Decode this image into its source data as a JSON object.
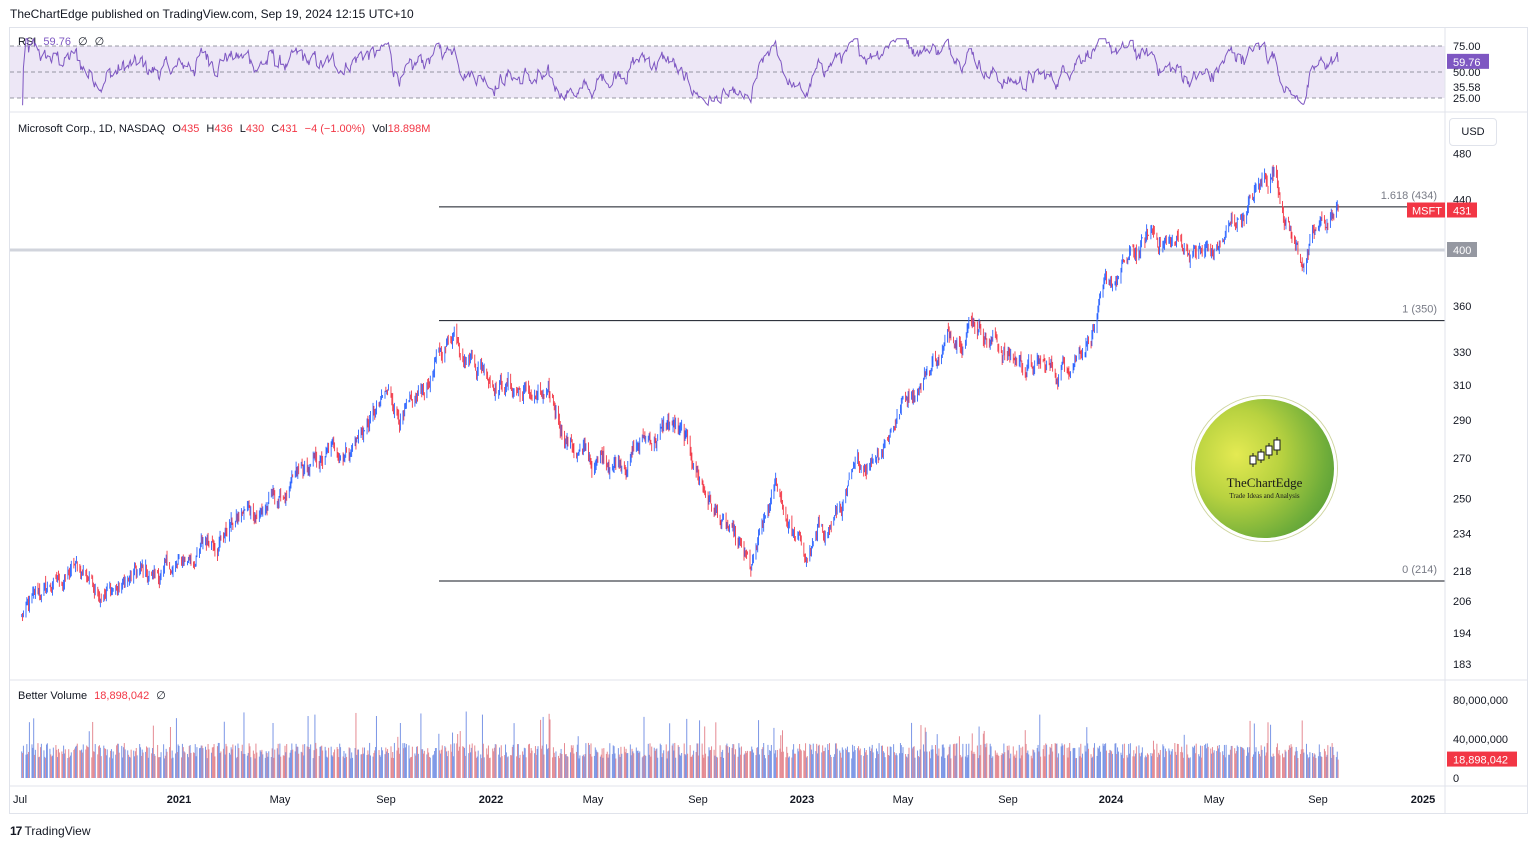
{
  "header": {
    "publisher": "TheChartEdge published on TradingView.com, Sep 19, 2024 12:15 UTC+10"
  },
  "colors": {
    "up": "#2962ff",
    "down": "#f23645",
    "rsi": "#7e57c2",
    "grid_line": "#131722",
    "band": "#ede7f6"
  },
  "rsi_panel": {
    "legend": {
      "name": "RSI",
      "value": "59.76",
      "p1": "∅",
      "p2": "∅"
    },
    "scale_labels": [
      "75.00",
      "50.00",
      "35.58",
      "25.00"
    ],
    "current_label": "59.76",
    "levels": {
      "upper": 75,
      "middle": 50,
      "lower": 25
    }
  },
  "main_panel": {
    "legend": {
      "symbol": "Microsoft Corp., 1D, NASDAQ",
      "o_key": "O",
      "o_val": "435",
      "h_key": "H",
      "h_val": "436",
      "l_key": "L",
      "l_val": "430",
      "c_key": "C",
      "c_val": "431",
      "change": "−4 (−1.00%)",
      "vol_key": "Vol",
      "vol_val": "18.898M"
    },
    "currency_button": "USD",
    "price_scale_labels": [
      "480",
      "440",
      "400",
      "360",
      "330",
      "310",
      "290",
      "270",
      "250",
      "234",
      "218",
      "206",
      "194",
      "183"
    ],
    "symbol_tag": "MSFT",
    "last_price": "431",
    "level_400_label": "400",
    "fib_levels": [
      {
        "label": "1.618 (434)",
        "price": 434
      },
      {
        "label": "1 (350)",
        "price": 350
      },
      {
        "label": "0 (214)",
        "price": 214
      }
    ],
    "horizontal_level": 400
  },
  "volume_panel": {
    "legend": {
      "name": "Better Volume",
      "value": "18,898,042",
      "p1": "∅"
    },
    "scale_labels": [
      "80,000,000",
      "40,000,000",
      "0"
    ],
    "current_label": "18,898,042"
  },
  "time_axis": [
    "Jul",
    "2021",
    "May",
    "Sep",
    "2022",
    "May",
    "Sep",
    "2023",
    "May",
    "Sep",
    "2024",
    "May",
    "Sep",
    "2025"
  ],
  "brand_badge": {
    "name": "TheChartEdge",
    "tagline": "Trade Ideas and Analysis"
  },
  "footer": {
    "logo_text": "TradingView"
  },
  "chart_data": {
    "type": "candlestick",
    "title": "Microsoft Corp., 1D, NASDAQ",
    "price_scale": "log",
    "date_range": [
      "2020-07",
      "2024-09-18"
    ],
    "price_path": [
      {
        "date": "2020-07-01",
        "price": 200
      },
      {
        "date": "2020-09-01",
        "price": 218
      },
      {
        "date": "2020-10-15",
        "price": 212
      },
      {
        "date": "2021-01-01",
        "price": 218
      },
      {
        "date": "2021-03-01",
        "price": 240
      },
      {
        "date": "2021-05-01",
        "price": 250
      },
      {
        "date": "2021-07-01",
        "price": 270
      },
      {
        "date": "2021-09-01",
        "price": 300
      },
      {
        "date": "2021-10-01",
        "price": 290
      },
      {
        "date": "2021-11-19",
        "price": 345
      },
      {
        "date": "2022-01-01",
        "price": 320
      },
      {
        "date": "2022-03-01",
        "price": 300
      },
      {
        "date": "2022-05-01",
        "price": 265
      },
      {
        "date": "2022-08-01",
        "price": 288
      },
      {
        "date": "2022-11-01",
        "price": 214
      },
      {
        "date": "2022-12-01",
        "price": 252
      },
      {
        "date": "2023-01-05",
        "price": 222
      },
      {
        "date": "2023-03-01",
        "price": 255
      },
      {
        "date": "2023-05-01",
        "price": 305
      },
      {
        "date": "2023-07-18",
        "price": 358
      },
      {
        "date": "2023-08-31",
        "price": 328
      },
      {
        "date": "2023-10-25",
        "price": 315
      },
      {
        "date": "2024-01-01",
        "price": 375
      },
      {
        "date": "2024-02-15",
        "price": 410
      },
      {
        "date": "2024-04-25",
        "price": 395
      },
      {
        "date": "2024-07-05",
        "price": 467
      },
      {
        "date": "2024-08-05",
        "price": 395
      },
      {
        "date": "2024-09-18",
        "price": 431
      }
    ],
    "last_candle": {
      "open": 435,
      "high": 436,
      "low": 430,
      "close": 431
    },
    "rsi_last": 59.76,
    "volume_last": 18898042,
    "volume_max_visible": 80000000
  }
}
